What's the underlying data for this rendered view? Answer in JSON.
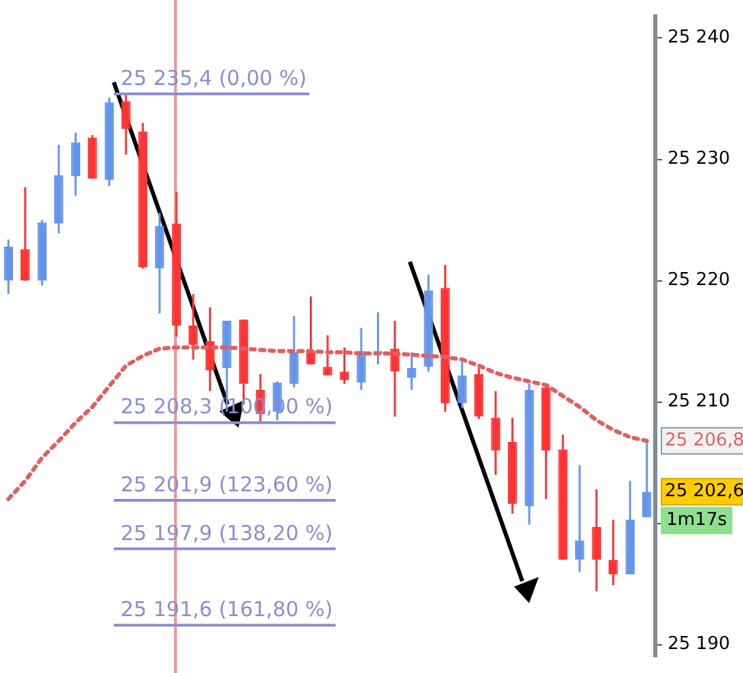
{
  "chart_data": {
    "type": "candlestick",
    "categories": [
      null,
      null,
      null,
      null,
      null,
      null,
      null,
      null,
      null,
      null,
      null,
      null,
      null,
      null,
      null,
      null,
      null,
      null,
      null,
      null,
      null,
      null,
      null,
      null,
      null,
      null,
      null,
      null,
      null,
      null,
      null,
      null,
      null,
      null,
      null,
      null,
      null,
      null,
      null
    ],
    "ohlc": [
      [
        25220,
        25223.4,
        25218.9,
        25222.8
      ],
      [
        25222.6,
        25227.7,
        25220,
        25220
      ],
      [
        25220,
        25225,
        25219.6,
        25224.8
      ],
      [
        25224.7,
        25231.2,
        25223.9,
        25228.7
      ],
      [
        25228.6,
        25232.2,
        25227,
        25231.4
      ],
      [
        25231.8,
        25232,
        25228.4,
        25228.4
      ],
      [
        25228.3,
        25235.1,
        25227.8,
        25234.7
      ],
      [
        25234.8,
        25235.4,
        25230.4,
        25232.5
      ],
      [
        25232.3,
        25233,
        25221,
        25221.1
      ],
      [
        25221,
        25225.6,
        25217.3,
        25224.5
      ],
      [
        25224.7,
        25227.3,
        25215.4,
        25216.3
      ],
      [
        25216.3,
        25218.9,
        25213.5,
        25214.7
      ],
      [
        25215,
        25217.8,
        25210.9,
        25212.6
      ],
      [
        25212.8,
        25216.7,
        25209.2,
        25216.7
      ],
      [
        25216.8,
        25216.8,
        25209.8,
        25211.5
      ],
      [
        25211,
        25212.3,
        25208.3,
        25209
      ],
      [
        25209.2,
        25211.7,
        25208.5,
        25211.6
      ],
      [
        25211.5,
        25217.1,
        25211.2,
        25214.1
      ],
      [
        25214.2,
        25218.7,
        25213.1,
        25213.1
      ],
      [
        25212.9,
        25215.5,
        25212.2,
        25212.2
      ],
      [
        25212.5,
        25214.5,
        25211.5,
        25211.8
      ],
      [
        25211.6,
        25216.1,
        25211,
        25214.2
      ],
      [
        25214,
        25217.4,
        25213.1,
        25214.2
      ],
      [
        25214.4,
        25216.7,
        25208.8,
        25212.5
      ],
      [
        25212,
        25214.1,
        25211,
        25212.8
      ],
      [
        25212.9,
        25220.5,
        25212.5,
        25219.2
      ],
      [
        25219.4,
        25221.3,
        25209.2,
        25209.9
      ],
      [
        25209.9,
        25213.3,
        25209.5,
        25212.2
      ],
      [
        25212.3,
        25212.8,
        25208.6,
        25208.8
      ],
      [
        25208.7,
        25210.9,
        25204,
        25206
      ],
      [
        25206.7,
        25208.7,
        25200.8,
        25201.6
      ],
      [
        25201.4,
        25211.5,
        25199.9,
        25211
      ],
      [
        25211.2,
        25211.4,
        25202,
        25206
      ],
      [
        25206.1,
        25207.3,
        25197,
        25197
      ],
      [
        25197,
        25204.8,
        25196,
        25198.6
      ],
      [
        25199.7,
        25202.8,
        25194.4,
        25197
      ],
      [
        25197,
        25200.3,
        25194.9,
        25195.8
      ],
      [
        25195.8,
        25203.5,
        25195.8,
        25200.3
      ],
      [
        25200.5,
        25206.8,
        25200.5,
        25202.6
      ]
    ],
    "colors": [
      "#6495ed",
      "#ff3333",
      "#6495ed",
      "#6495ed",
      "#6495ed",
      "#ff3333",
      "#6495ed",
      "#ff3333",
      "#ff3333",
      "#6495ed",
      "#ff3333",
      "#ff3333",
      "#ff3333",
      "#6495ed",
      "#ff3333",
      "#ff3333",
      "#6495ed",
      "#6495ed",
      "#ff3333",
      "#ff3333",
      "#ff3333",
      "#6495ed",
      "#6495ed",
      "#ff3333",
      "#6495ed",
      "#6495ed",
      "#ff3333",
      "#6495ed",
      "#ff3333",
      "#ff3333",
      "#ff3333",
      "#6495ed",
      "#ff3333",
      "#ff3333",
      "#6495ed",
      "#ff3333",
      "#ff3333",
      "#6495ed",
      "#6495ed"
    ],
    "series": [
      {
        "type": "line",
        "color": "#e06060",
        "line_style": "dotted",
        "values": [
          25202,
          25203.5,
          25205.4,
          25206.8,
          25208.3,
          25209.6,
          25211.3,
          25213,
          25213.8,
          25214.4,
          25214.5,
          25214.5,
          25214.5,
          25214.5,
          25214.4,
          25214.3,
          25214.2,
          25214.2,
          25214.2,
          25214.1,
          25214.1,
          25214,
          25214,
          25214,
          25213.9,
          25213.8,
          25213.7,
          25213.5,
          25213,
          25212.4,
          25212,
          25211.7,
          25211.4,
          25210.5,
          25209.6,
          25208.5,
          25207.7,
          25207.1,
          25206.8
        ]
      }
    ],
    "ylim": [
      25189,
      25241.8
    ],
    "yticks": [
      {
        "value": 25190,
        "label": "25 190"
      },
      {
        "value": 25200,
        "label": null
      },
      {
        "value": 25210,
        "label": "25 210"
      },
      {
        "value": 25220,
        "label": "25 220"
      },
      {
        "value": 25230,
        "label": "25 230"
      },
      {
        "value": 25240,
        "label": "25 240"
      }
    ],
    "grid": false,
    "legend": false,
    "tick_labels": "y",
    "ref_lines": [
      {
        "axis": "y",
        "value": 25235.4,
        "label": "25 235,4 (0,00 %)",
        "color": "#8c8cd4"
      },
      {
        "axis": "y",
        "value": 25208.3,
        "label": "25 208,3 (100,00 %)",
        "color": "#8c8cd4"
      },
      {
        "axis": "y",
        "value": 25201.9,
        "label": "25 201,9 (123,60 %)",
        "color": "#8c8cd4"
      },
      {
        "axis": "y",
        "value": 25197.9,
        "label": "25 197,9 (138,20 %)",
        "color": "#8c8cd4"
      },
      {
        "axis": "y",
        "value": 25191.6,
        "label": "25 191,6 (161,80 %)",
        "color": "#8c8cd4"
      }
    ],
    "annotations": [
      "25 206,8",
      "25 202,6",
      "1m17s"
    ]
  }
}
